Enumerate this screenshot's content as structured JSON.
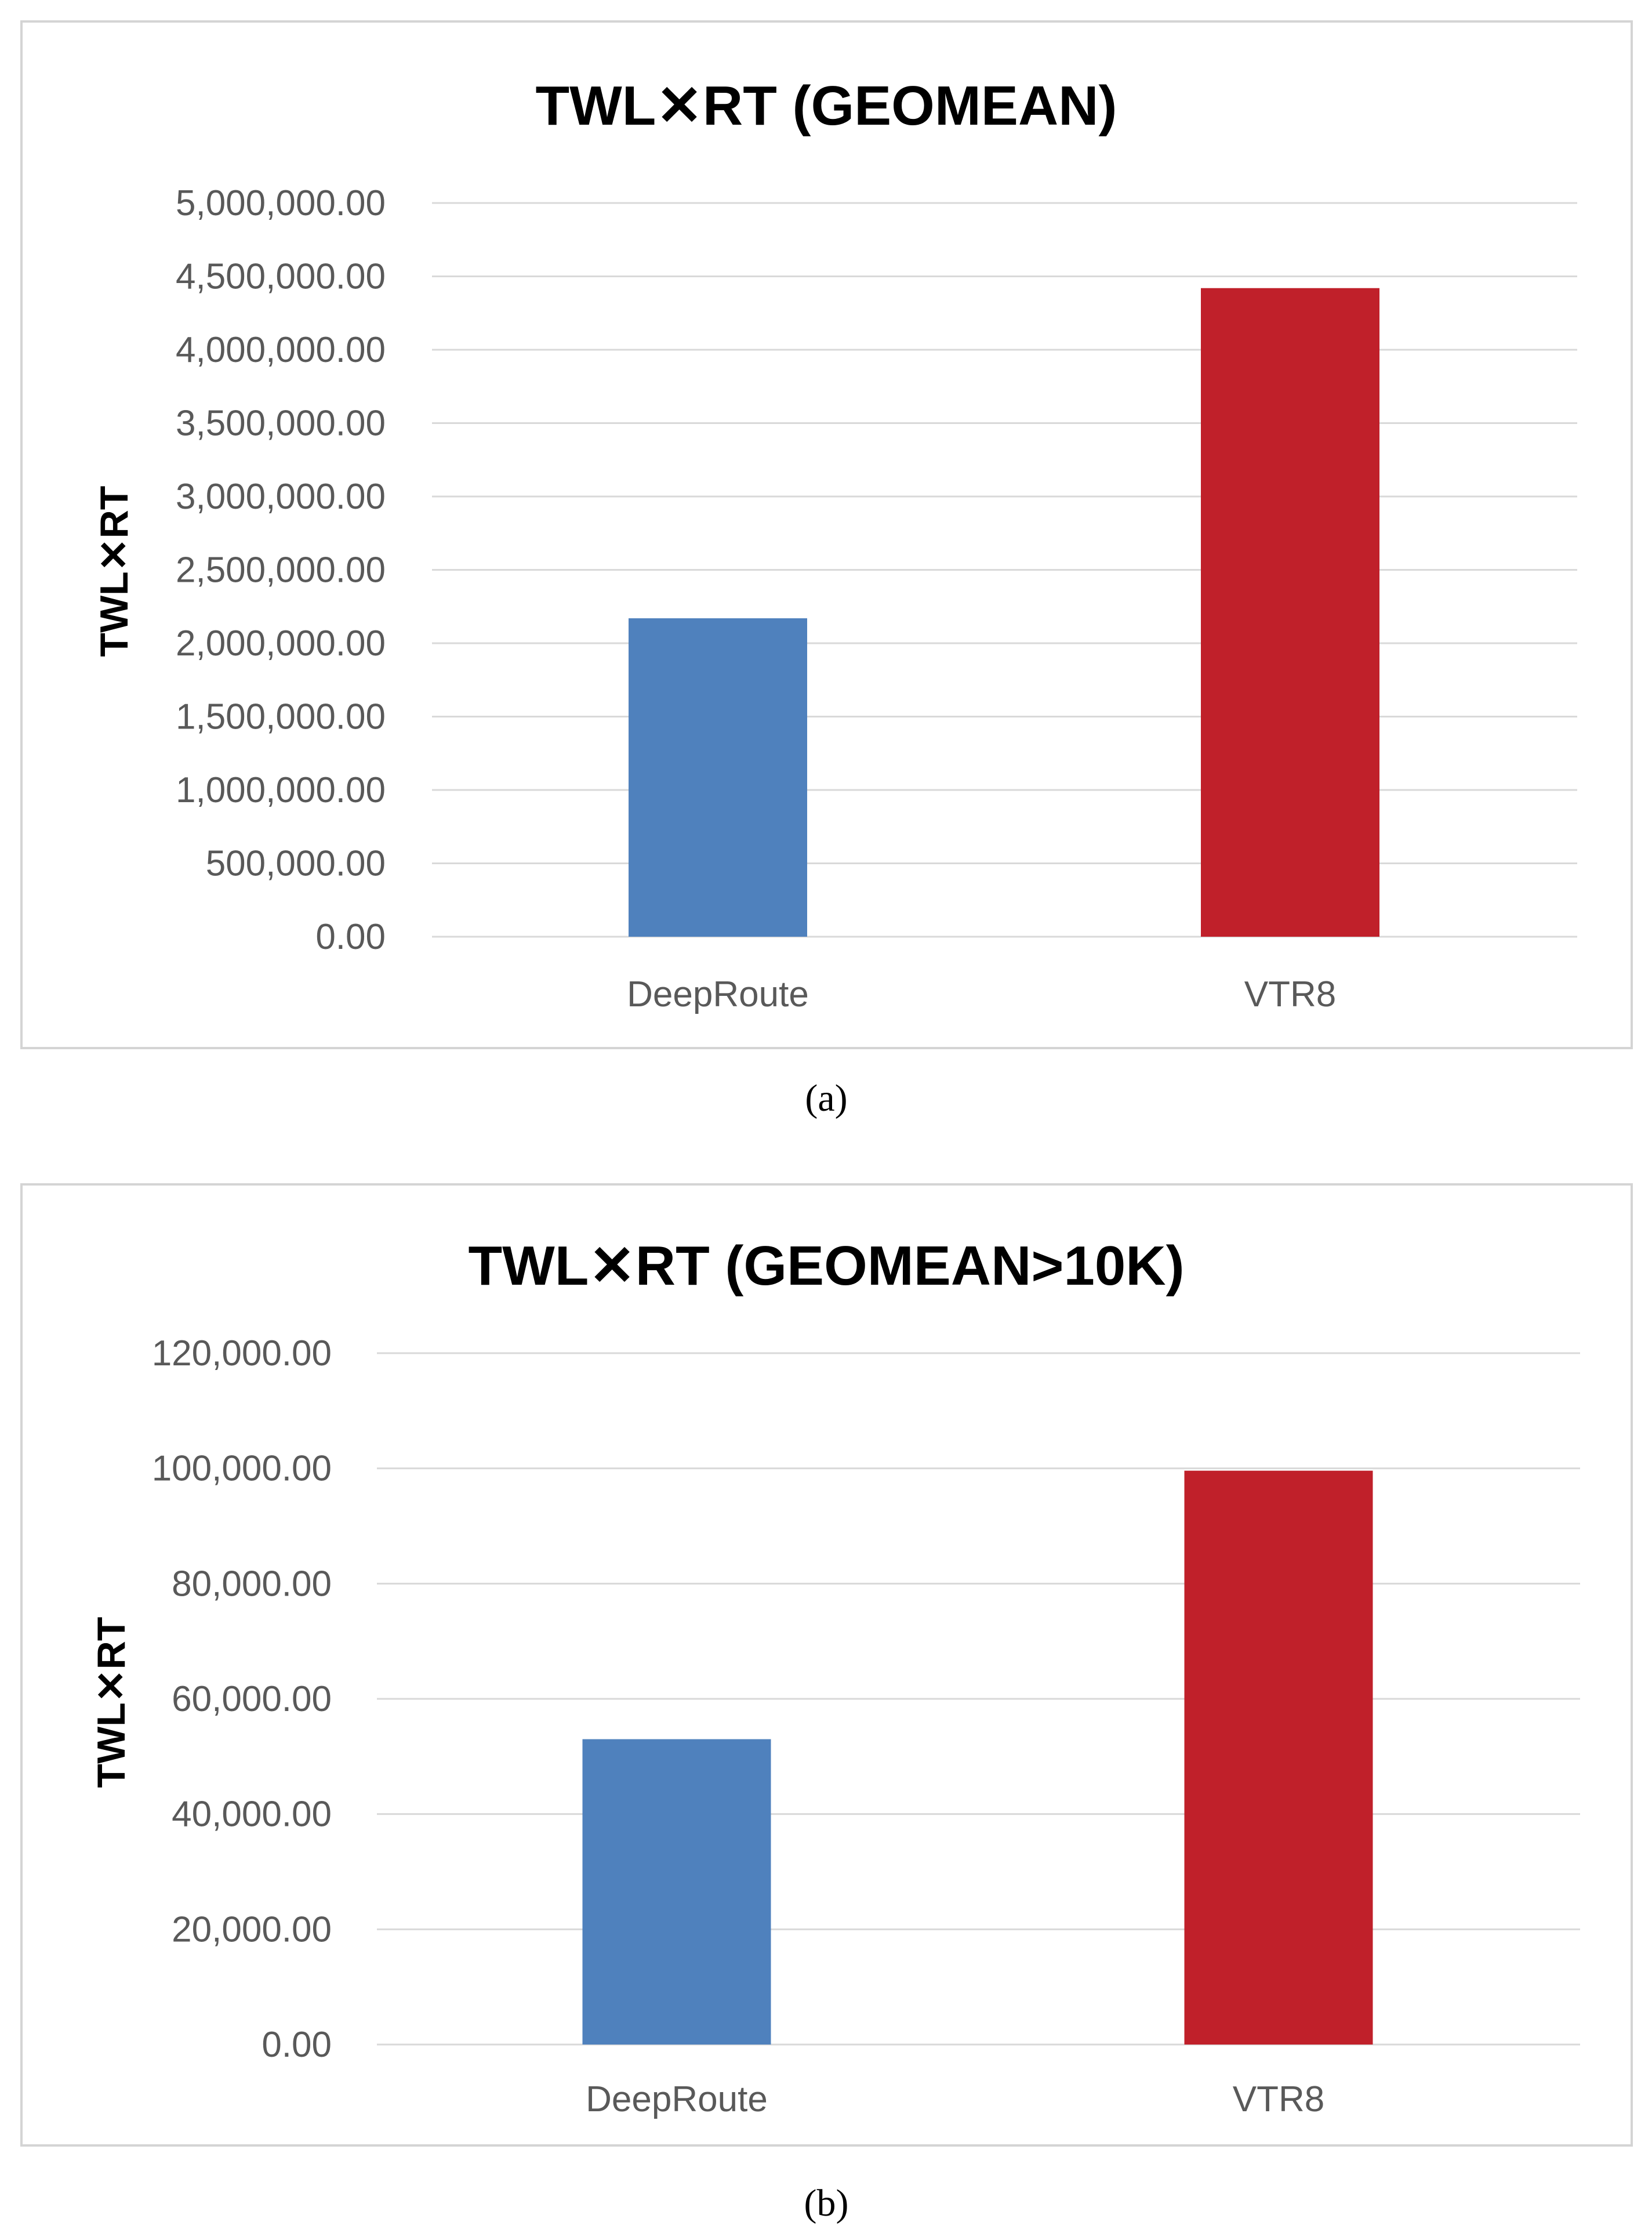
{
  "chart_data": [
    {
      "type": "bar",
      "panel": "(a)",
      "title": "TWL✕RT (GEOMEAN)",
      "xlabel": "",
      "ylabel": "TWL✕RT",
      "categories": [
        "DeepRoute",
        "VTR8"
      ],
      "values": [
        2170000,
        4420000
      ],
      "colors": [
        "#4f81bd",
        "#c0202a"
      ],
      "ylim": [
        0,
        5000000
      ],
      "yticks": [
        0,
        500000,
        1000000,
        1500000,
        2000000,
        2500000,
        3000000,
        3500000,
        4000000,
        4500000,
        5000000
      ],
      "ytick_labels": [
        "0.00",
        "500,000.00",
        "1,000,000.00",
        "1,500,000.00",
        "2,000,000.00",
        "2,500,000.00",
        "3,000,000.00",
        "3,500,000.00",
        "4,000,000.00",
        "4,500,000.00",
        "5,000,000.00"
      ],
      "grid": true,
      "legend": "none"
    },
    {
      "type": "bar",
      "panel": "(b)",
      "title": "TWL✕RT (GEOMEAN>10K)",
      "xlabel": "",
      "ylabel": "TWL✕RT",
      "categories": [
        "DeepRoute",
        "VTR8"
      ],
      "values": [
        53000,
        99600
      ],
      "colors": [
        "#4f81bd",
        "#c0202a"
      ],
      "ylim": [
        0,
        120000
      ],
      "yticks": [
        0,
        20000,
        40000,
        60000,
        80000,
        100000,
        120000
      ],
      "ytick_labels": [
        "0.00",
        "20,000.00",
        "40,000.00",
        "60,000.00",
        "80,000.00",
        "100,000.00",
        "120,000.00"
      ],
      "grid": true,
      "legend": "none"
    }
  ]
}
